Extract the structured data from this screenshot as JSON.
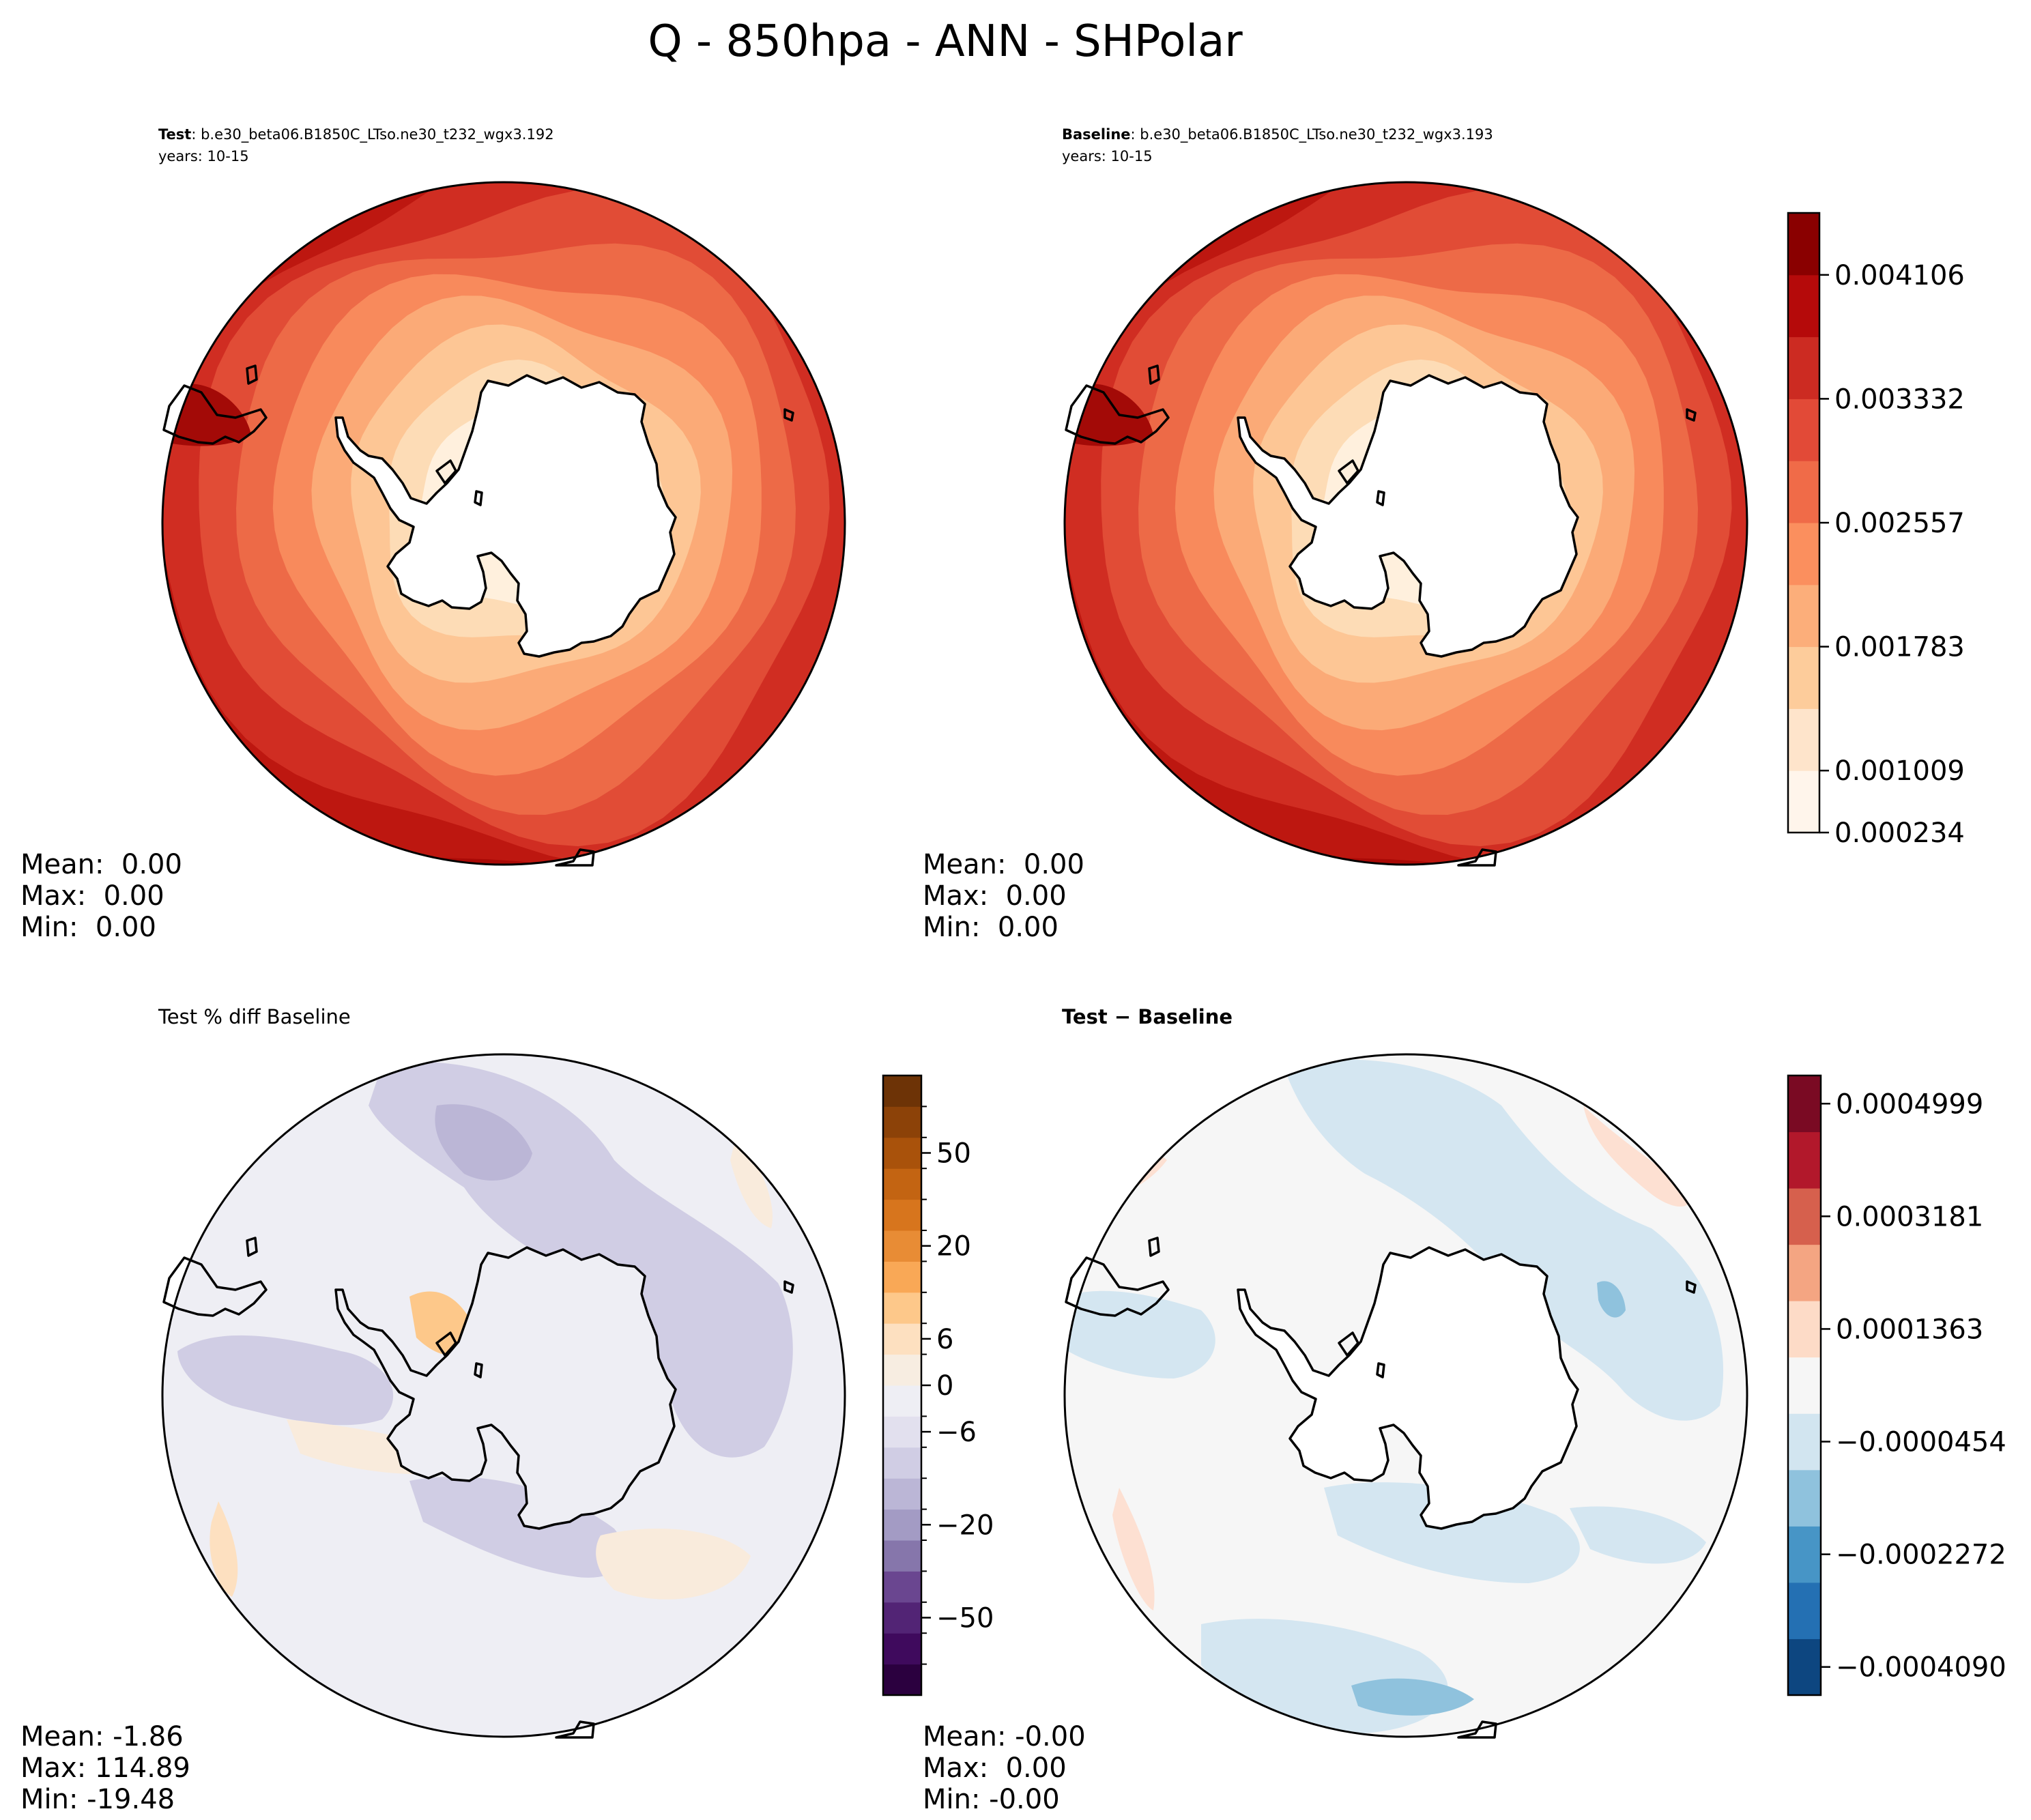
{
  "title": "Q - 850hpa - ANN - SHPolar",
  "panels": {
    "test": {
      "label_bold": "Test",
      "label_rest": ": b.e30_beta06.B1850C_LTso.ne30_t232_wgx3.192",
      "years": "years: 10-15",
      "stats": {
        "mean": "Mean:  0.00",
        "max": "Max:  0.00",
        "min": "Min:  0.00"
      }
    },
    "baseline": {
      "label_bold": "Baseline",
      "label_rest": ": b.e30_beta06.B1850C_LTso.ne30_t232_wgx3.193",
      "years": "years: 10-15",
      "stats": {
        "mean": "Mean:  0.00",
        "max": "Max:  0.00",
        "min": "Min:  0.00"
      }
    },
    "pctdiff": {
      "label": "Test % diff Baseline",
      "stats": {
        "mean": "Mean: -1.86",
        "max": "Max: 114.89",
        "min": "Min: -19.48"
      }
    },
    "diff": {
      "label": "Test − Baseline",
      "stats": {
        "mean": "Mean: -0.00",
        "max": "Max:  0.00",
        "min": "Min: -0.00"
      }
    }
  },
  "colorbars": {
    "main": {
      "colors": [
        "#fff5eb",
        "#fee4cb",
        "#fdcc9b",
        "#fcae7a",
        "#fb8f5e",
        "#f06b48",
        "#e24a37",
        "#cc2b22",
        "#b50a0a",
        "#8a0000"
      ],
      "ticks": [
        "0.000234",
        "0.001009",
        "0.001783",
        "0.002557",
        "0.003332",
        "0.004106"
      ]
    },
    "pct": {
      "colors": [
        "#2b003f",
        "#3f0a5d",
        "#522475",
        "#6a4690",
        "#8676ab",
        "#a39bc4",
        "#bbb6d6",
        "#d0cde4",
        "#e2e0ee",
        "#eeeef4",
        "#f7ede1",
        "#fde0c0",
        "#fdc88a",
        "#f9a856",
        "#e88c35",
        "#d7751d",
        "#c36412",
        "#a9520b",
        "#8c4208",
        "#6d3306"
      ],
      "ticks": [
        "−50",
        "−20",
        "−6",
        "0",
        "6",
        "20",
        "50"
      ]
    },
    "diff": {
      "colors": [
        "#0d4680",
        "#2470b3",
        "#4795c6",
        "#8fc2dd",
        "#d2e5f0",
        "#f6f6f6",
        "#fddbc7",
        "#f4a582",
        "#d6604d",
        "#b2182b",
        "#7a0a23"
      ],
      "ticks": [
        "−0.0004090",
        "−0.0002272",
        "−0.0000454",
        "0.0001363",
        "0.0003181",
        "0.0004999"
      ]
    }
  },
  "map_fields": {
    "abs_rings": [
      "#fff0dd",
      "#fddcb6",
      "#fdc695",
      "#fbaa77",
      "#f88a5c",
      "#ed6a47",
      "#e14c36",
      "#d02d22",
      "#bd1710",
      "#a90a06"
    ],
    "pct_color_neutral": "#eeeef4",
    "pct_color_negative": "#d0cde4",
    "pct_color_positive": "#f9ebdc",
    "diff_color_neutral": "#f6f6f6",
    "diff_color_negative": "#d4e6f1",
    "diff_color_positive": "#fde0d2"
  }
}
